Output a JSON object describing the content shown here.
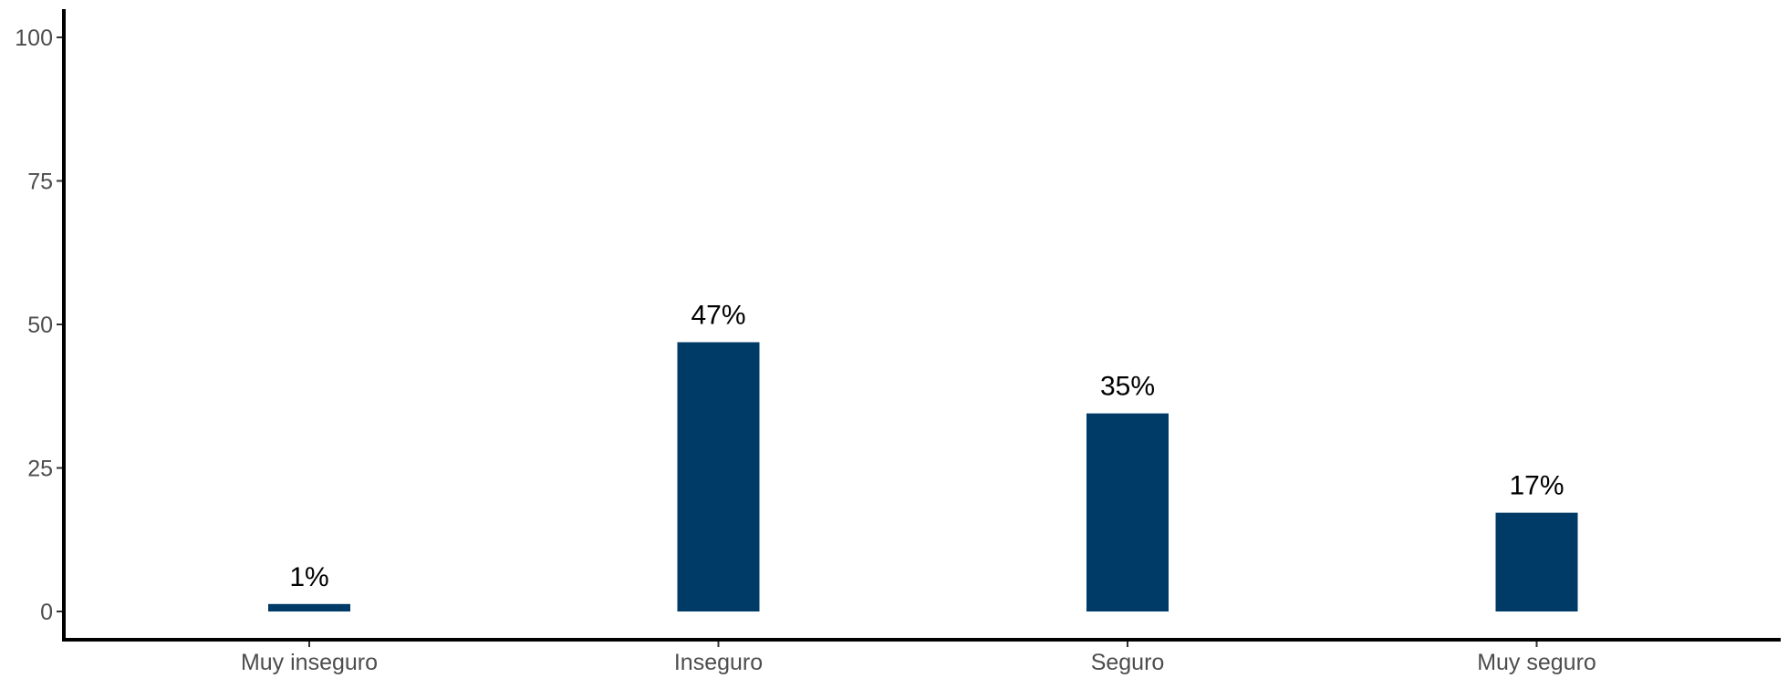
{
  "chart_data": {
    "type": "bar",
    "categories": [
      "Muy inseguro",
      "Inseguro",
      "Seguro",
      "Muy seguro"
    ],
    "values": [
      1.3,
      46.9,
      34.5,
      17.2
    ],
    "data_labels": [
      "1%",
      "47%",
      "35%",
      "17%"
    ],
    "title": "",
    "xlabel": "",
    "ylabel": "",
    "ylim": [
      0,
      105
    ],
    "yticks": [
      0,
      25,
      50,
      75,
      100
    ],
    "ytick_labels": [
      "0",
      "25",
      "50",
      "75",
      "100"
    ],
    "grid": false,
    "legend": "none",
    "bar_color": "#003a66"
  }
}
